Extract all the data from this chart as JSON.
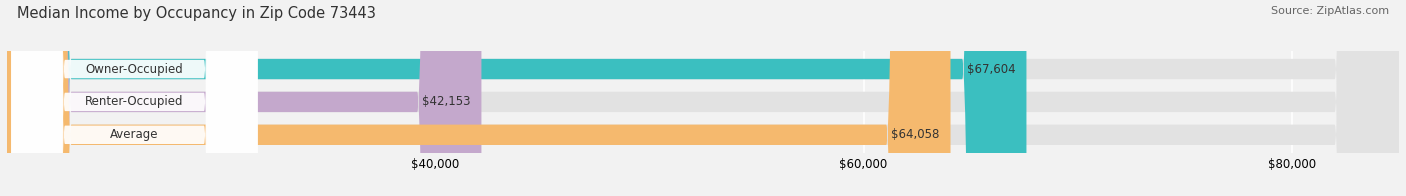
{
  "title": "Median Income by Occupancy in Zip Code 73443",
  "source": "Source: ZipAtlas.com",
  "categories": [
    "Owner-Occupied",
    "Renter-Occupied",
    "Average"
  ],
  "values": [
    67604,
    42153,
    64058
  ],
  "bar_colors": [
    "#3bbfc0",
    "#c4a8cc",
    "#f5b96e"
  ],
  "bar_labels": [
    "$67,604",
    "$42,153",
    "$64,058"
  ],
  "xlim": [
    20000,
    85000
  ],
  "xticks": [
    40000,
    60000,
    80000
  ],
  "xtick_labels": [
    "$40,000",
    "$60,000",
    "$80,000"
  ],
  "title_fontsize": 10.5,
  "source_fontsize": 8,
  "label_fontsize": 8.5,
  "bar_height": 0.62,
  "background_color": "#f2f2f2",
  "bar_bg_color": "#e2e2e2",
  "label_bg_color": "#ffffff",
  "grid_color": "#ffffff"
}
